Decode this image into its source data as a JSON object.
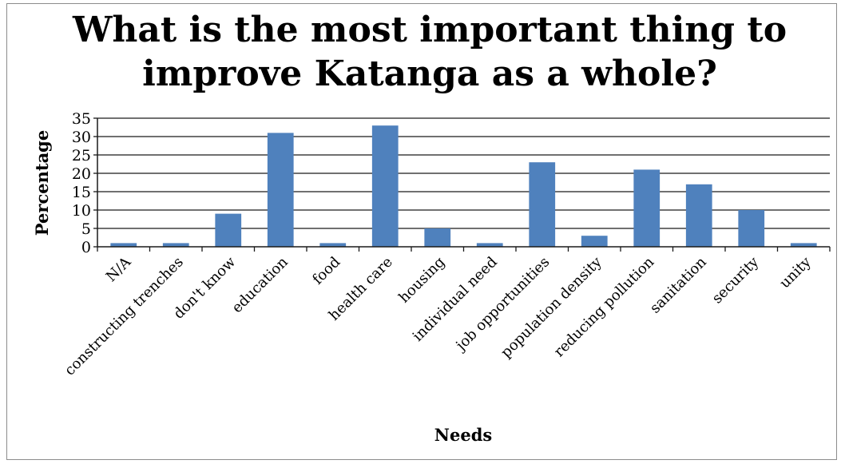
{
  "chart_data": {
    "type": "bar",
    "title_lines": [
      "What is the most important thing to",
      "improve Katanga as a whole?"
    ],
    "xlabel": "Needs",
    "ylabel": "Percentage",
    "ylim": [
      0,
      35
    ],
    "yticks": [
      0,
      5,
      10,
      15,
      20,
      25,
      30,
      35
    ],
    "grid": true,
    "legend": "none",
    "bar_color": "#4f81bd",
    "categories": [
      "N/A",
      "constructing trenches",
      "don't know",
      "education",
      "food",
      "health care",
      "housing",
      "individual need",
      "job opportunities",
      "population density",
      "reducing pollution",
      "sanitation",
      "security",
      "unity"
    ],
    "values": [
      1,
      1,
      9,
      31,
      1,
      33,
      5,
      1,
      23,
      3,
      21,
      17,
      10,
      1
    ]
  }
}
